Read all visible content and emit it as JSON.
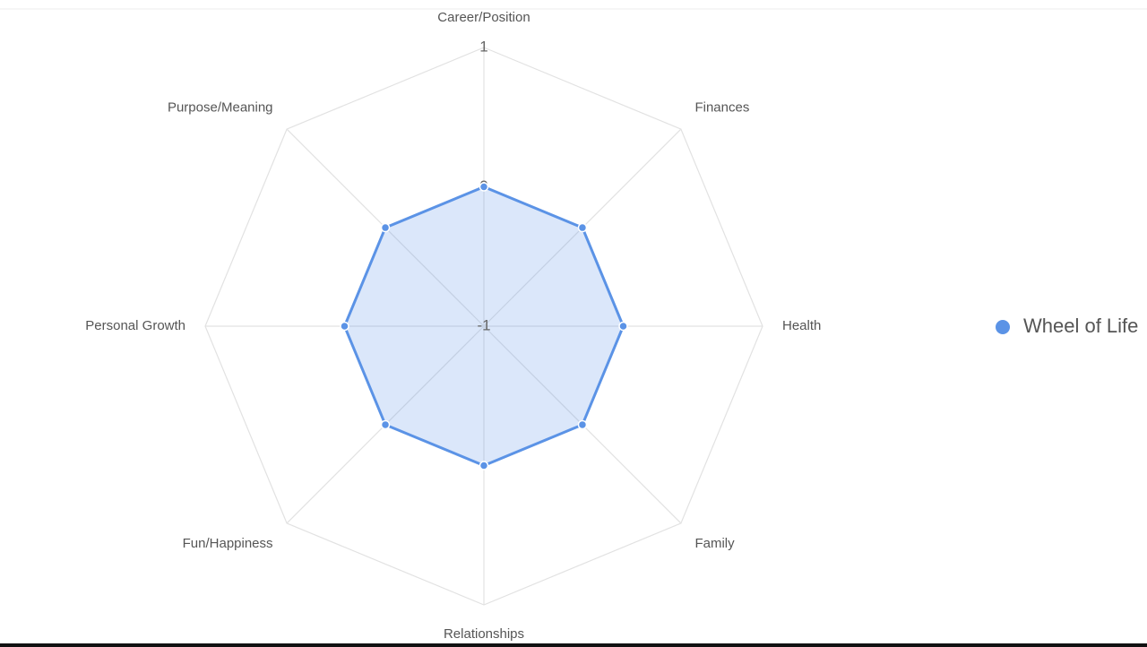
{
  "chart_data": {
    "type": "radar",
    "categories": [
      "Career/Position",
      "Finances",
      "Health",
      "Family",
      "Relationships",
      "Fun/Happiness",
      "Personal Growth",
      "Purpose/Meaning"
    ],
    "series": [
      {
        "name": "Wheel of Life",
        "color": "#5b93e6",
        "values": [
          0,
          0,
          0,
          0,
          0,
          0,
          0,
          0
        ]
      }
    ],
    "rlim": [
      -1,
      1
    ],
    "rticks": [
      -1,
      0,
      1
    ],
    "grid": true,
    "legend": "right"
  }
}
